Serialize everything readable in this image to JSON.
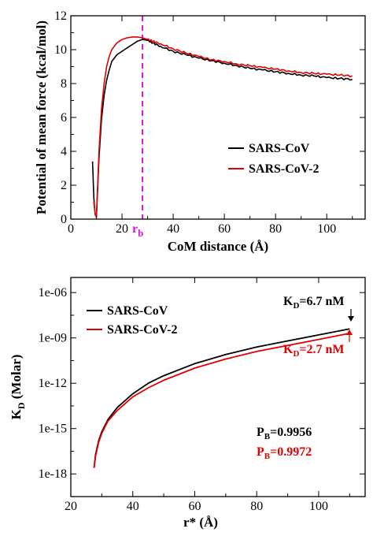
{
  "colors": {
    "black": "#000000",
    "red": "#e00000",
    "magenta": "#e010e0"
  },
  "chart_data": [
    {
      "type": "line",
      "title": "",
      "xlabel": "CoM distance (Å)",
      "ylabel": "Potential of mean force (kcal/mol)",
      "xlim": [
        0,
        115
      ],
      "ylim": [
        0,
        12
      ],
      "xticks": [
        0,
        20,
        40,
        60,
        80,
        100
      ],
      "yticks": [
        0,
        2,
        4,
        6,
        8,
        10,
        12
      ],
      "legend_position": "center-right",
      "vline": {
        "x": 28,
        "label": "r",
        "label_sub": "b",
        "color": "#e010e0"
      },
      "series": [
        {
          "name": "SARS-CoV",
          "color": "#000000",
          "x": [
            8.5,
            9.0,
            9.5,
            10.0,
            10.5,
            11.0,
            12.0,
            13.0,
            14.0,
            15.0,
            16.0,
            18.0,
            20.0,
            22.0,
            24.0,
            26.0,
            28.0,
            30.0,
            32.0,
            35.0,
            40.0,
            45.0,
            50.0,
            55.0,
            60.0,
            65.0,
            70.0,
            75.0,
            80.0,
            85.0,
            90.0,
            95.0,
            100.0,
            105.0,
            110.0
          ],
          "y": [
            3.4,
            1.2,
            0.3,
            0.1,
            1.8,
            3.6,
            5.9,
            7.3,
            8.2,
            8.8,
            9.3,
            9.7,
            9.9,
            10.1,
            10.3,
            10.5,
            10.6,
            10.55,
            10.4,
            10.2,
            9.9,
            9.7,
            9.5,
            9.35,
            9.2,
            9.05,
            8.9,
            8.8,
            8.7,
            8.6,
            8.5,
            8.45,
            8.35,
            8.3,
            8.25
          ]
        },
        {
          "name": "SARS-CoV-2",
          "color": "#e00000",
          "x": [
            9.0,
            9.5,
            10.0,
            10.5,
            11.0,
            12.0,
            13.0,
            14.0,
            15.0,
            16.0,
            18.0,
            20.0,
            22.0,
            24.0,
            26.0,
            28.0,
            30.0,
            32.0,
            35.0,
            40.0,
            45.0,
            50.0,
            55.0,
            60.0,
            65.0,
            70.0,
            75.0,
            80.0,
            85.0,
            90.0,
            95.0,
            100.0,
            105.0,
            110.0
          ],
          "y": [
            1.0,
            0.3,
            0.1,
            2.0,
            4.0,
            6.5,
            8.0,
            9.0,
            9.6,
            10.0,
            10.4,
            10.6,
            10.7,
            10.75,
            10.75,
            10.7,
            10.6,
            10.5,
            10.35,
            10.05,
            9.8,
            9.6,
            9.4,
            9.3,
            9.15,
            9.05,
            8.95,
            8.85,
            8.75,
            8.65,
            8.6,
            8.55,
            8.5,
            8.45
          ]
        }
      ]
    },
    {
      "type": "line",
      "title": "",
      "xlabel": "r* (Å)",
      "ylabel": "K",
      "ylabel_sub": "D",
      "ylabel_suffix": " (Molar)",
      "xlim": [
        20,
        115
      ],
      "yscale": "log",
      "ylim_log10": [
        -19.5,
        -5
      ],
      "xticks": [
        20,
        40,
        60,
        80,
        100
      ],
      "yticks": [
        "1e-06",
        "1e-09",
        "1e-12",
        "1e-15",
        "1e-18"
      ],
      "ytick_values_log10": [
        -6,
        -9,
        -12,
        -15,
        -18
      ],
      "legend_position": "top-left",
      "annotations": [
        {
          "label": "K",
          "sub": "D",
          "text": "=6.7 nM",
          "color": "#000000"
        },
        {
          "label": "K",
          "sub": "D",
          "text": "=2.7 nM",
          "color": "#e00000"
        },
        {
          "label": "P",
          "sub": "B",
          "text": "=0.9956",
          "color": "#000000"
        },
        {
          "label": "P",
          "sub": "B",
          "text": "=0.9972",
          "color": "#e00000"
        }
      ],
      "series": [
        {
          "name": "SARS-CoV",
          "color": "#000000",
          "x": [
            27.5,
            28.0,
            29.0,
            30.0,
            32.0,
            35.0,
            40.0,
            45.0,
            50.0,
            60.0,
            70.0,
            80.0,
            90.0,
            100.0,
            110.0
          ],
          "y_log10": [
            -17.6,
            -16.7,
            -15.8,
            -15.2,
            -14.4,
            -13.6,
            -12.7,
            -12.0,
            -11.5,
            -10.7,
            -10.1,
            -9.6,
            -9.2,
            -8.8,
            -8.4
          ]
        },
        {
          "name": "SARS-CoV-2",
          "color": "#e00000",
          "x": [
            27.5,
            28.0,
            29.0,
            30.0,
            32.0,
            35.0,
            40.0,
            45.0,
            50.0,
            60.0,
            70.0,
            80.0,
            90.0,
            100.0,
            110.0
          ],
          "y_log10": [
            -17.6,
            -16.8,
            -15.9,
            -15.3,
            -14.5,
            -13.8,
            -12.9,
            -12.3,
            -11.8,
            -11.0,
            -10.4,
            -9.9,
            -9.5,
            -9.1,
            -8.7
          ]
        }
      ]
    }
  ]
}
